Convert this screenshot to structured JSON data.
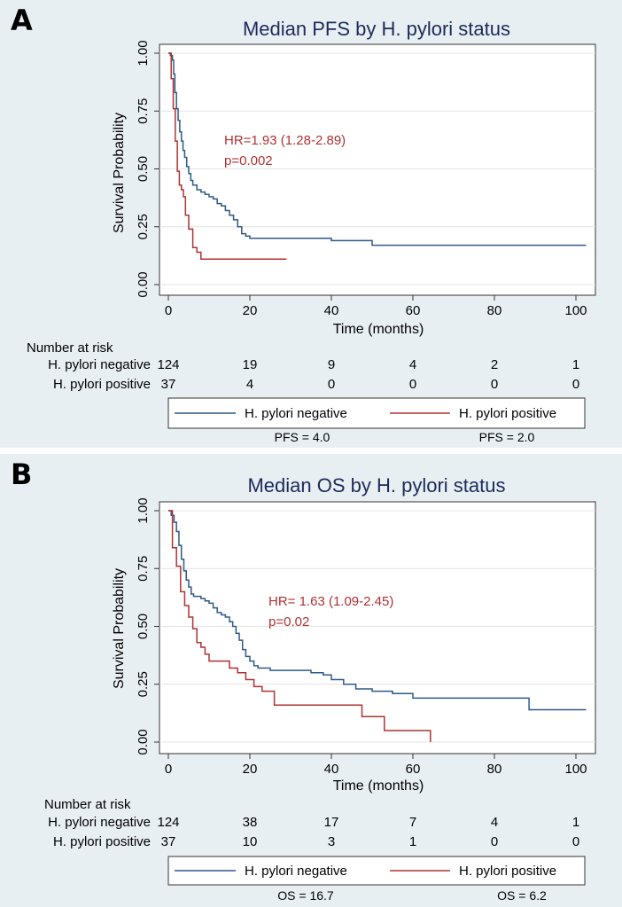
{
  "chart_data": [
    {
      "type": "line",
      "panel_label": "A",
      "title": "Median PFS by H. pylori status",
      "xlabel": "Time (months)",
      "ylabel": "Survival Probability",
      "xlim": [
        0,
        102
      ],
      "ylim": [
        0,
        1
      ],
      "xticks": [
        "0",
        "20",
        "40",
        "60",
        "80",
        "100"
      ],
      "yticks": [
        "0.00",
        "0.25",
        "0.50",
        "0.75",
        "1.00"
      ],
      "grid": true,
      "annotation": [
        "HR=1.93 (1.28-2.89)",
        "p=0.002"
      ],
      "series": [
        {
          "name": "H. pylori negative",
          "color": "#2e5a87",
          "x": [
            0,
            0.5,
            1,
            1.3,
            1.6,
            2,
            2.4,
            2.8,
            3.2,
            3.6,
            4,
            4.5,
            5,
            5.5,
            6,
            7,
            8,
            9,
            10,
            11,
            12,
            13,
            14,
            15,
            16,
            17,
            18,
            19,
            20,
            30,
            40,
            50,
            102.5
          ],
          "y": [
            1,
            0.99,
            0.97,
            0.91,
            0.83,
            0.76,
            0.71,
            0.66,
            0.62,
            0.58,
            0.55,
            0.51,
            0.48,
            0.45,
            0.43,
            0.41,
            0.4,
            0.39,
            0.38,
            0.37,
            0.35,
            0.34,
            0.32,
            0.3,
            0.28,
            0.25,
            0.22,
            0.21,
            0.2,
            0.2,
            0.19,
            0.17,
            0.17
          ]
        },
        {
          "name": "H. pylori positive",
          "color": "#b03232",
          "x": [
            0,
            0.7,
            1.2,
            1.7,
            2.2,
            2.7,
            3.2,
            3.7,
            4.2,
            5,
            6,
            7,
            8,
            29
          ],
          "y": [
            1,
            0.89,
            0.76,
            0.62,
            0.49,
            0.43,
            0.41,
            0.38,
            0.3,
            0.24,
            0.16,
            0.14,
            0.11,
            0.11
          ]
        }
      ],
      "risk_table": {
        "header": "Number at risk",
        "rows": [
          {
            "label": "H. pylori negative",
            "values": [
              "124",
              "19",
              "9",
              "4",
              "2",
              "1"
            ]
          },
          {
            "label": "H. pylori positive",
            "values": [
              "37",
              "4",
              "0",
              "0",
              "0",
              "0"
            ]
          }
        ]
      },
      "legend": [
        "H. pylori negative",
        "H. pylori positive"
      ],
      "medians": [
        "PFS = 4.0",
        "PFS = 2.0"
      ]
    },
    {
      "type": "line",
      "panel_label": "B",
      "title": "Median OS by H. pylori status",
      "xlabel": "Time (months)",
      "ylabel": "Survival Probability",
      "xlim": [
        0,
        102
      ],
      "ylim": [
        0,
        1
      ],
      "xticks": [
        "0",
        "20",
        "40",
        "60",
        "80",
        "100"
      ],
      "yticks": [
        "0.00",
        "0.25",
        "0.50",
        "0.75",
        "1.00"
      ],
      "grid": true,
      "annotation": [
        "HR= 1.63 (1.09-2.45)",
        "p=0.02"
      ],
      "series": [
        {
          "name": "H. pylori negative",
          "color": "#2e5a87",
          "x": [
            0,
            0.7,
            1.4,
            2,
            2.6,
            3.2,
            3.8,
            4.4,
            5,
            5.6,
            6.2,
            7,
            8,
            9,
            10,
            11,
            12,
            13,
            14,
            15,
            15.8,
            16.6,
            17.4,
            18.2,
            19,
            20,
            21,
            22,
            25,
            30,
            35,
            38,
            40,
            43,
            46,
            50,
            55,
            60,
            70,
            88.5,
            102.5
          ],
          "y": [
            1,
            0.98,
            0.95,
            0.91,
            0.85,
            0.79,
            0.74,
            0.7,
            0.67,
            0.64,
            0.63,
            0.63,
            0.62,
            0.61,
            0.6,
            0.58,
            0.56,
            0.55,
            0.54,
            0.52,
            0.5,
            0.47,
            0.44,
            0.4,
            0.37,
            0.35,
            0.33,
            0.32,
            0.31,
            0.31,
            0.3,
            0.29,
            0.27,
            0.25,
            0.23,
            0.22,
            0.21,
            0.19,
            0.19,
            0.14,
            0.14
          ]
        },
        {
          "name": "H. pylori positive",
          "color": "#b03232",
          "x": [
            0,
            1,
            2,
            3,
            4,
            5,
            6,
            7,
            8,
            9,
            10,
            13,
            15,
            17,
            19,
            21,
            23,
            26,
            30,
            40,
            47.5,
            53,
            64,
            64.3
          ],
          "y": [
            1,
            0.84,
            0.76,
            0.65,
            0.59,
            0.54,
            0.49,
            0.43,
            0.41,
            0.38,
            0.35,
            0.35,
            0.32,
            0.3,
            0.27,
            0.24,
            0.22,
            0.16,
            0.16,
            0.16,
            0.11,
            0.05,
            0.05,
            0
          ]
        }
      ],
      "risk_table": {
        "header": "Number at risk",
        "rows": [
          {
            "label": "H. pylori negative",
            "values": [
              "124",
              "38",
              "17",
              "7",
              "4",
              "1"
            ]
          },
          {
            "label": "H. pylori positive",
            "values": [
              "37",
              "10",
              "3",
              "1",
              "0",
              "0"
            ]
          }
        ]
      },
      "legend": [
        "H. pylori negative",
        "H. pylori positive"
      ],
      "medians": [
        "OS = 16.7",
        "OS = 6.2"
      ]
    }
  ]
}
